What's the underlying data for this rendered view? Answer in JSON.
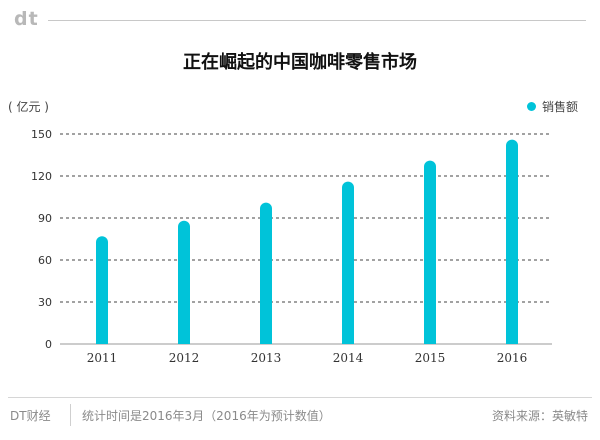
{
  "header": {
    "logo": "dt"
  },
  "title": "正在崛起的中国咖啡零售市场",
  "unit": "( 亿元 )",
  "legend": {
    "label": "销售额"
  },
  "colors": {
    "bar": "#00c3d9",
    "grid": "#444444",
    "axis": "#999999"
  },
  "chart_data": {
    "type": "bar",
    "title": "正在崛起的中国咖啡零售市场",
    "ylabel": "( 亿元 )",
    "xlabel": "",
    "categories": [
      "2011",
      "2012",
      "2013",
      "2014",
      "2015",
      "2016"
    ],
    "series": [
      {
        "name": "销售额",
        "values": [
          77,
          88,
          101,
          116,
          131,
          146
        ]
      }
    ],
    "ylim": [
      0,
      150
    ],
    "yticks": [
      0,
      30,
      60,
      90,
      120,
      150
    ],
    "grid": true,
    "legend_position": "top-right"
  },
  "footer": {
    "brand": "DT财经",
    "note": "统计时间是2016年3月（2016年为预计数值）",
    "source": "资料来源：英敏特"
  }
}
